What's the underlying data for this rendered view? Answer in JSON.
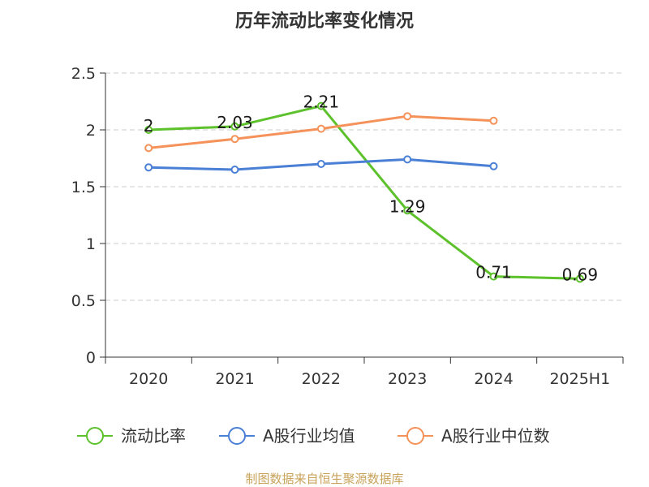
{
  "chart_data": {
    "type": "line",
    "title": "历年流动比率变化情况",
    "categories": [
      "2020",
      "2021",
      "2022",
      "2023",
      "2024",
      "2025H1"
    ],
    "ylim": [
      0,
      2.5
    ],
    "yticks": [
      "0",
      "0.5",
      "1",
      "1.5",
      "2",
      "2.5"
    ],
    "grid": true,
    "legend_position": "bottom",
    "series": [
      {
        "name": "流动比率",
        "color": "#5cc12b",
        "values": [
          2.0,
          2.03,
          2.21,
          1.29,
          0.71,
          0.69
        ],
        "labels": [
          "2",
          "2.03",
          "2.21",
          "1.29",
          "0.71",
          "0.69"
        ]
      },
      {
        "name": "A股行业均值",
        "color": "#4a7fd6",
        "values": [
          1.67,
          1.65,
          1.7,
          1.74,
          1.68,
          null
        ]
      },
      {
        "name": "A股行业中位数",
        "color": "#f5925a",
        "values": [
          1.84,
          1.92,
          2.01,
          2.12,
          2.08,
          null
        ]
      }
    ]
  },
  "source": "制图数据来自恒生聚源数据库"
}
